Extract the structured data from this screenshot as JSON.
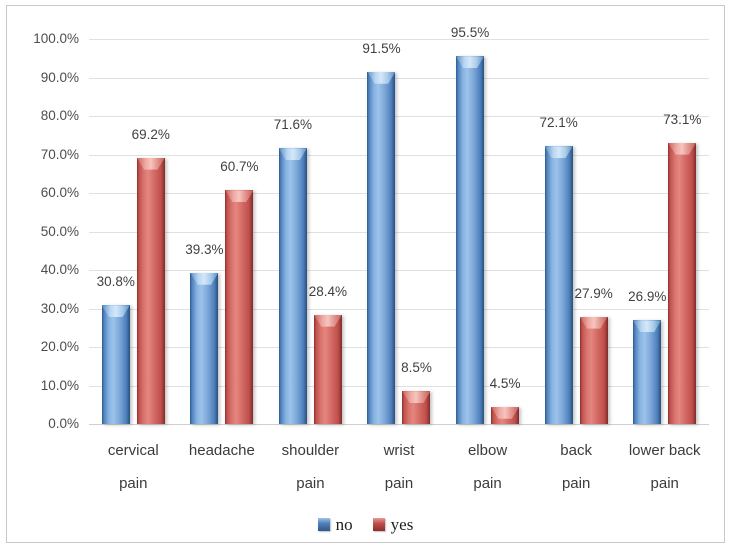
{
  "chart_data": {
    "type": "bar",
    "title": "",
    "xlabel": "",
    "ylabel": "",
    "categories": [
      "cervical pain",
      "headache",
      "shoulder pain",
      "wrist pain",
      "elbow pain",
      "back pain",
      "lower back pain"
    ],
    "category_label_lines": [
      [
        "cervical",
        "pain"
      ],
      [
        "headache"
      ],
      [
        "shoulder",
        "pain"
      ],
      [
        "wrist",
        "pain"
      ],
      [
        "elbow",
        "pain"
      ],
      [
        "back",
        "pain"
      ],
      [
        "lower back",
        "pain"
      ]
    ],
    "series": [
      {
        "name": "no",
        "color": "#4f81bd",
        "values": [
          30.8,
          39.3,
          71.6,
          91.5,
          95.5,
          72.1,
          26.9
        ]
      },
      {
        "name": "yes",
        "color": "#c0504d",
        "values": [
          69.2,
          60.7,
          28.4,
          8.5,
          4.5,
          27.9,
          73.1
        ]
      }
    ],
    "data_labels": [
      [
        "30.8%",
        "39.3%",
        "71.6%",
        "91.5%",
        "95.5%",
        "72.1%",
        "26.9%"
      ],
      [
        "69.2%",
        "60.7%",
        "28.4%",
        "8.5%",
        "4.5%",
        "27.9%",
        "73.1%"
      ]
    ],
    "y_axis": {
      "min": 0,
      "max": 100,
      "step": 10,
      "ticks": [
        "100.0%",
        "90.0%",
        "80.0%",
        "70.0%",
        "60.0%",
        "50.0%",
        "40.0%",
        "30.0%",
        "20.0%",
        "10.0%",
        "0.0%"
      ]
    },
    "ylim": [
      0,
      100
    ],
    "grid": true,
    "legend": {
      "position": "bottom",
      "items": [
        {
          "label": "no",
          "color": "#4f81bd"
        },
        {
          "label": "yes",
          "color": "#c0504d"
        }
      ]
    }
  }
}
